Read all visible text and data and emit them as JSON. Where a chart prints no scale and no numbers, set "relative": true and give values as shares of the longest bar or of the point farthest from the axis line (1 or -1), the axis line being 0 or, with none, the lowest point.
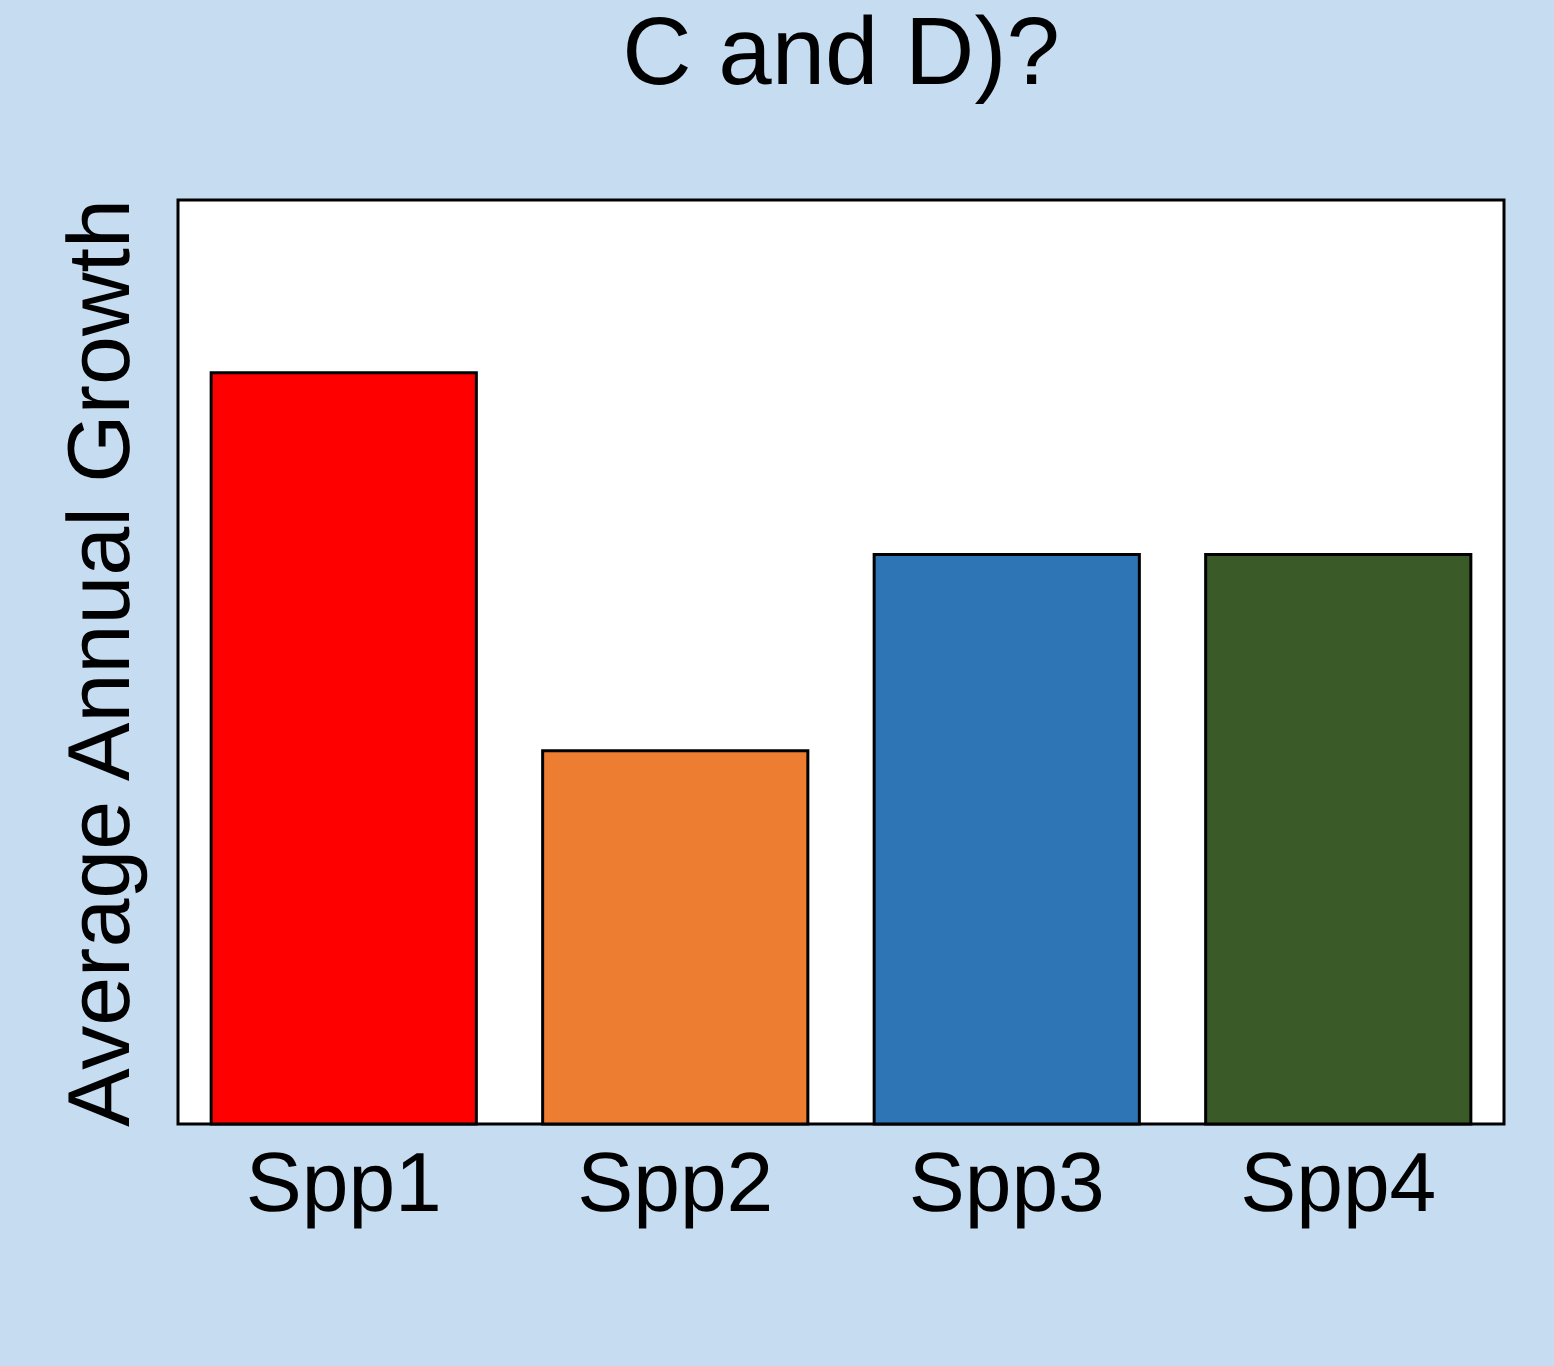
{
  "chart_data": {
    "type": "bar",
    "title": "C and D)?",
    "ylabel": "Average Annual Growth",
    "relative": true,
    "categories": [
      "Spp1",
      "Spp2",
      "Spp3",
      "Spp4"
    ],
    "values": [
      1,
      0.497,
      0.758,
      0.758
    ],
    "colors": [
      "#ff0000",
      "#ed7d31",
      "#2e75b6",
      "#3a5a27"
    ]
  }
}
